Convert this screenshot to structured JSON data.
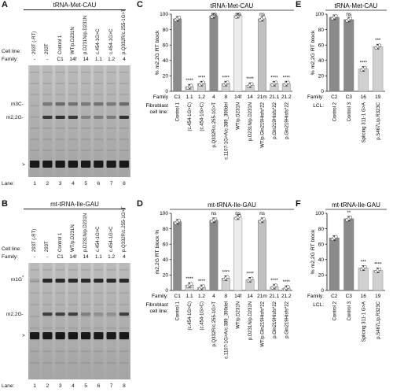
{
  "panels": {
    "A": {
      "letter": "A",
      "title": "tRNA-Met-CAU",
      "row_labels": {
        "cell_line": "Cell line:",
        "family": "Family:",
        "lane": "Lane:"
      },
      "lanes": [
        {
          "cell_line": "293T (-RT)",
          "family": "-",
          "lane": "1"
        },
        {
          "cell_line": "293T",
          "family": "-",
          "lane": "2"
        },
        {
          "cell_line": "Control 1",
          "family": "C1",
          "lane": "3"
        },
        {
          "cell_line": "WT/p.D231N",
          "family": "14f",
          "lane": "4"
        },
        {
          "cell_line": "p.D231N/p.D231N",
          "family": "14",
          "lane": "5"
        },
        {
          "cell_line": "c.454-1G>C",
          "family": "1.1",
          "lane": "6"
        },
        {
          "cell_line": "c.454-1G>C",
          "family": "1.2",
          "lane": "7"
        },
        {
          "cell_line": "p.Q332R/c.255-1G>T",
          "family": "4",
          "lane": "8"
        }
      ],
      "band_labels": [
        "m3C-",
        "m2,2G-",
        ">"
      ]
    },
    "B": {
      "letter": "B",
      "title": "mt-tRNA-Ile-GAU",
      "row_labels": {
        "cell_line": "Cell line:",
        "family": "Family:",
        "lane": "Lane:"
      },
      "lanes": [
        {
          "cell_line": "293T (-RT)",
          "family": "-",
          "lane": "1"
        },
        {
          "cell_line": "293T",
          "family": "-",
          "lane": "2"
        },
        {
          "cell_line": "Control 1",
          "family": "C1",
          "lane": "3"
        },
        {
          "cell_line": "WT/p.D231N",
          "family": "14f",
          "lane": "4"
        },
        {
          "cell_line": "p.D231N/p.D231N",
          "family": "14",
          "lane": "5"
        },
        {
          "cell_line": "c.454-1G>C",
          "family": "1.1",
          "lane": "6"
        },
        {
          "cell_line": "c.454-1G>C",
          "family": "1.2",
          "lane": "7"
        },
        {
          "cell_line": "p.Q332R/c.255-1G>T",
          "family": "4",
          "lane": "8"
        }
      ],
      "band_labels": [
        "m1G",
        "*",
        "m2,2G-",
        ">"
      ]
    },
    "C": {
      "letter": "C",
      "title": "tRNA-Met-CAU",
      "row_label_family": "Family",
      "row_label_cell": "Fibroblast cell line:"
    },
    "D": {
      "letter": "D",
      "title": "mt-tRNA-Ile-GAU",
      "row_label_family": "Family:",
      "row_label_cell": "Fibroblast cell line:"
    },
    "E": {
      "letter": "E",
      "title": "tRNA-Met-CAU",
      "row_label_family": "Family:",
      "row_label_cell": "LCL:"
    },
    "F": {
      "letter": "F",
      "title": "mt-tRNA-Ile-GAU",
      "row_label_family": "Family:",
      "row_label_cell": "LCL:"
    }
  },
  "chart_data": [
    {
      "panel": "C",
      "type": "bar",
      "title": "tRNA-Met-CAU",
      "ylabel": "% m2,2G RT block",
      "ylim": [
        0,
        100
      ],
      "yticks": [
        0,
        20,
        40,
        60,
        80,
        100
      ],
      "categories": [
        "C1",
        "1.1",
        "1.2",
        "4",
        "8",
        "14f",
        "14",
        "21m",
        "21.1",
        "21.2"
      ],
      "cell_lines": [
        "Control 1",
        "(c.454-1G>C)",
        "(c.454-1G>C)",
        "p.Q332R/c.255-1G>T",
        "c.1107-1G>A/c.389_390del",
        "WT/p.D231N",
        "p.D231N/p.D231N",
        "WT/p.Gln219Hisfs*22",
        "p.Gln219Hisfs*22",
        "p.Gln219Hisfs*22"
      ],
      "values": [
        94,
        6,
        10,
        98,
        10,
        98,
        8,
        94,
        10,
        10
      ],
      "significance": [
        "",
        "****",
        "****",
        "ns",
        "****",
        "ns",
        "****",
        "ns",
        "****",
        "****"
      ],
      "colors": [
        "#8a8a8a",
        "#d0d0d0",
        "#d0d0d0",
        "#8a8a8a",
        "#d0d0d0",
        "#ececec",
        "#d0d0d0",
        "#c0c0c0",
        "#d0d0d0",
        "#d0d0d0"
      ]
    },
    {
      "panel": "D",
      "type": "bar",
      "title": "mt-tRNA-Ile-GAU",
      "ylabel": "m2,2G RT block %",
      "ylim": [
        0,
        100
      ],
      "yticks": [
        0,
        20,
        40,
        60,
        80,
        100
      ],
      "categories": [
        "C1",
        "1.1",
        "1.2",
        "4",
        "8",
        "14f",
        "14",
        "21m",
        "21.1",
        "21.2"
      ],
      "cell_lines": [
        "Control 1",
        "(c.454-1G>C)",
        "(c.454-1G>C)",
        "p.Q332R/c.255-1G>T",
        "c.1107-1G>A/c.389_390del",
        "WT/p.D231N",
        "p.D231N/p.D231N",
        "WT/p.Gln219Hisfs*22",
        "p.Gln219Hisfs*22",
        "p.Gln219Hisfs*22"
      ],
      "values": [
        89,
        7,
        4,
        91,
        16,
        95,
        14,
        91,
        5,
        3
      ],
      "significance": [
        "",
        "****",
        "****",
        "ns",
        "****",
        "ns",
        "****",
        "ns",
        "****",
        "****"
      ],
      "colors": [
        "#8a8a8a",
        "#d0d0d0",
        "#d0d0d0",
        "#8a8a8a",
        "#d0d0d0",
        "#ececec",
        "#d0d0d0",
        "#c0c0c0",
        "#d0d0d0",
        "#d0d0d0"
      ]
    },
    {
      "panel": "E",
      "type": "bar",
      "title": "tRNA-Met-CAU",
      "ylabel": "% m2,2G RT block",
      "ylim": [
        0,
        100
      ],
      "yticks": [
        0,
        20,
        40,
        60,
        80,
        100
      ],
      "categories": [
        "C2",
        "C3",
        "16",
        "19"
      ],
      "cell_lines": [
        "Control 2",
        "Control 3",
        "Splicing 311-1 G>A",
        "p.S467L/p.R323C"
      ],
      "values": [
        96,
        93,
        29,
        58
      ],
      "significance": [
        "",
        "ns",
        "****",
        "***"
      ],
      "colors": [
        "#8a8a8a",
        "#8a8a8a",
        "#d0d0d0",
        "#d0d0d0"
      ]
    },
    {
      "panel": "F",
      "type": "bar",
      "title": "mt-tRNA-Ile-GAU",
      "ylabel": "% m2,2G RT block",
      "ylim": [
        0,
        100
      ],
      "yticks": [
        0,
        20,
        40,
        60,
        80,
        100
      ],
      "categories": [
        "C2",
        "C3",
        "16",
        "19"
      ],
      "cell_lines": [
        "Control 2",
        "Control 3",
        "Splicing 311-1 G>A",
        "p.S467L/p.R323C"
      ],
      "values": [
        68,
        93,
        29,
        26
      ],
      "significance": [
        "",
        "**",
        "***",
        "****"
      ],
      "colors": [
        "#8a8a8a",
        "#8a8a8a",
        "#d0d0d0",
        "#d0d0d0"
      ]
    }
  ]
}
